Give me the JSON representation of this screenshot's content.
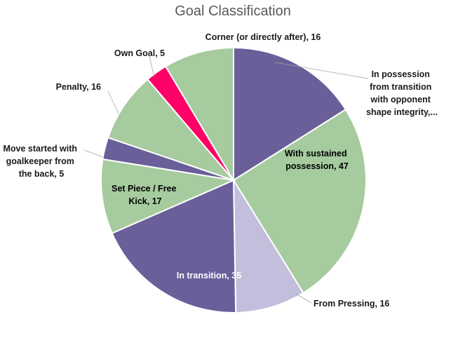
{
  "chart_data": {
    "type": "pie",
    "title": "Goal Classification",
    "slices": [
      {
        "label": "In possession from transition with opponent shape integrity,...",
        "display": "In possession from transition with opponent shape integrity,..., 30",
        "value": 30,
        "color": "#6a5f99"
      },
      {
        "label": "With sustained possession",
        "display": "With sustained possession, 47",
        "value": 47,
        "color": "#a6cb9f"
      },
      {
        "label": "From Pressing",
        "display": "From Pressing, 16",
        "value": 16,
        "color": "#c2bfdc"
      },
      {
        "label": "In transition",
        "display": "In transition, 35",
        "value": 35,
        "color": "#6a5f99"
      },
      {
        "label": "Set Piece / Free Kick",
        "display": "Set Piece / Free Kick, 17",
        "value": 17,
        "color": "#a6cb9f"
      },
      {
        "label": "Move started with goalkeeper from the back",
        "display": "Move started with goalkeeper from the back, 5",
        "value": 5,
        "color": "#6a5f99"
      },
      {
        "label": "Penalty",
        "display": "Penalty, 16",
        "value": 16,
        "color": "#a6cb9f"
      },
      {
        "label": "Own Goal",
        "display": "Own Goal, 5",
        "value": 5,
        "color": "#ff0066"
      },
      {
        "label": "Corner (or directly after)",
        "display": "Corner (or directly after), 16",
        "value": 16,
        "color": "#a6cb9f"
      }
    ],
    "labels": {
      "poss_transition": [
        "In possession",
        "from transition",
        "with opponent",
        "shape integrity,..."
      ],
      "sustained": [
        "With sustained",
        "possession, 47"
      ],
      "pressing": [
        "From Pressing, 16"
      ],
      "transition": [
        "In transition, 35"
      ],
      "setpiece": [
        "Set Piece / Free",
        "Kick, 17"
      ],
      "goalkeeper": [
        "Move started with",
        "goalkeeper from",
        "the back, 5"
      ],
      "penalty": [
        "Penalty, 16"
      ],
      "owngoal": [
        "Own Goal, 5"
      ],
      "corner": [
        "Corner (or directly after), 16"
      ]
    },
    "legend": "none"
  }
}
